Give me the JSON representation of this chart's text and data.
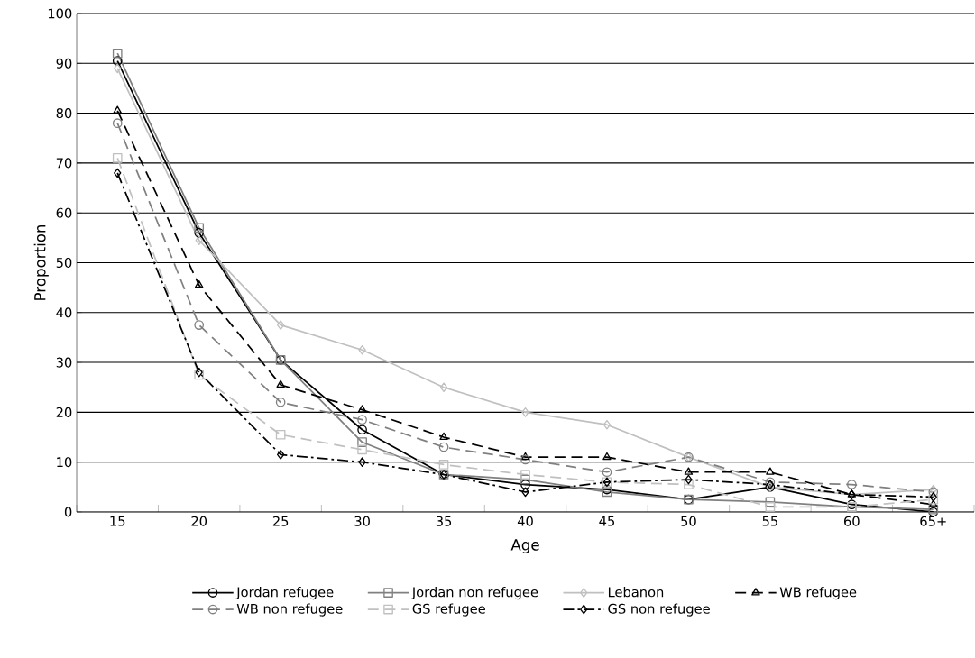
{
  "chart_data": {
    "type": "line",
    "xlabel": "Age",
    "ylabel": "Proportion",
    "categories": [
      "15",
      "20",
      "25",
      "30",
      "35",
      "40",
      "45",
      "50",
      "55",
      "60",
      "65+"
    ],
    "ylim": [
      0,
      100
    ],
    "yticks": [
      0,
      10,
      20,
      30,
      40,
      50,
      60,
      70,
      80,
      90,
      100
    ],
    "grid": "y",
    "legend": "bottom",
    "series": [
      {
        "name": "Jordan refugee",
        "color": "#000000",
        "marker": "circle",
        "line_style": "solid",
        "values": [
          90.5,
          56,
          30.5,
          16.5,
          7.5,
          5.5,
          4.5,
          2.5,
          5,
          1.5,
          0
        ]
      },
      {
        "name": "Jordan non refugee",
        "color": "#808080",
        "marker": "square",
        "line_style": "solid",
        "values": [
          92,
          57,
          30.5,
          14,
          7.5,
          6.5,
          4,
          2.5,
          2,
          1,
          0.5
        ]
      },
      {
        "name": "Lebanon",
        "color": "#c0c0c0",
        "marker": "diamond",
        "line_style": "solid",
        "values": [
          89,
          54.5,
          37.5,
          32.5,
          25,
          20,
          17.5,
          11,
          5,
          3.5,
          4.5
        ]
      },
      {
        "name": "WB refugee",
        "color": "#000000",
        "marker": "triangle",
        "line_style": "dashed",
        "values": [
          80.5,
          45.5,
          25.5,
          20.5,
          15,
          11,
          11,
          8,
          8,
          3.5,
          1.5
        ]
      },
      {
        "name": "WB non refugee",
        "color": "#808080",
        "marker": "circle",
        "line_style": "dashed",
        "values": [
          78,
          37.5,
          22,
          18.5,
          13,
          10.5,
          8,
          11,
          6,
          5.5,
          4
        ]
      },
      {
        "name": "GS refugee",
        "color": "#c0c0c0",
        "marker": "square",
        "line_style": "dashed",
        "values": [
          71,
          27.5,
          15.5,
          12.5,
          9.5,
          7.5,
          6,
          5.5,
          1,
          1,
          2.5
        ]
      },
      {
        "name": "GS non refugee",
        "color": "#000000",
        "marker": "diamond",
        "line_style": "dashdot",
        "values": [
          68,
          28,
          11.5,
          10,
          7.5,
          4,
          6,
          6.5,
          5.5,
          3.5,
          3
        ]
      }
    ]
  }
}
